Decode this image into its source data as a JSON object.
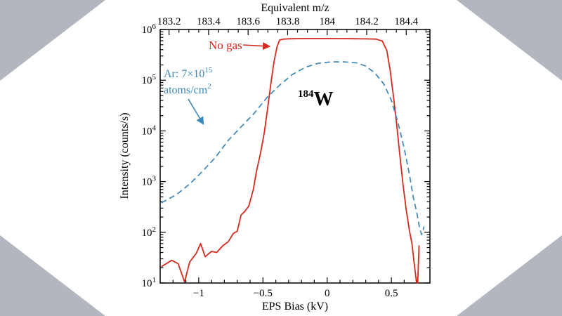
{
  "background": {
    "outer": "#b2b6be",
    "panel": "#ffffff"
  },
  "chart_data": {
    "type": "line",
    "title": "",
    "x_axis_bottom": {
      "label": "EPS Bias (kV)",
      "range": [
        -1.3,
        0.8
      ],
      "major_ticks": [
        -1,
        -0.5,
        0,
        0.5
      ],
      "tick_labels": [
        "−1",
        "−0.5",
        "0",
        "0.5"
      ],
      "minor_step": 0.1
    },
    "x_axis_top": {
      "label": "Equivalent m/z",
      "range": [
        183.155,
        184.52
      ],
      "major_ticks": [
        183.2,
        183.4,
        183.6,
        183.8,
        184.0,
        184.2,
        184.4
      ],
      "tick_labels": [
        "183.2",
        "183.4",
        "183.6",
        "183.8",
        "184",
        "184.2",
        "184.4"
      ],
      "minor_step": 0.05
    },
    "y_axis": {
      "label": "Intensity (counts/s)",
      "scale": "log",
      "range": [
        10,
        1000000
      ],
      "tick_exponents": [
        1,
        2,
        3,
        4,
        5,
        6
      ]
    },
    "series": [
      {
        "name": "No gas",
        "color": "#d62a1e",
        "line_style": "solid",
        "points": [
          [
            -1.29,
            21
          ],
          [
            -1.21,
            28
          ],
          [
            -1.16,
            24
          ],
          [
            -1.11,
            10.5
          ],
          [
            -1.07,
            26
          ],
          [
            -1.02,
            38
          ],
          [
            -0.985,
            60
          ],
          [
            -0.95,
            33
          ],
          [
            -0.9,
            42
          ],
          [
            -0.86,
            40
          ],
          [
            -0.81,
            55
          ],
          [
            -0.77,
            65
          ],
          [
            -0.73,
            95
          ],
          [
            -0.7,
            105
          ],
          [
            -0.67,
            220
          ],
          [
            -0.64,
            260
          ],
          [
            -0.61,
            330
          ],
          [
            -0.575,
            700
          ],
          [
            -0.55,
            1600
          ],
          [
            -0.52,
            3500
          ],
          [
            -0.49,
            9000
          ],
          [
            -0.465,
            26000
          ],
          [
            -0.44,
            80000
          ],
          [
            -0.415,
            220000
          ],
          [
            -0.39,
            460000
          ],
          [
            -0.37,
            620000
          ],
          [
            -0.34,
            645000
          ],
          [
            -0.3,
            655000
          ],
          [
            -0.22,
            660000
          ],
          [
            -0.12,
            662000
          ],
          [
            0,
            662000
          ],
          [
            0.12,
            660000
          ],
          [
            0.22,
            657000
          ],
          [
            0.31,
            652000
          ],
          [
            0.38,
            645000
          ],
          [
            0.43,
            590000
          ],
          [
            0.465,
            380000
          ],
          [
            0.49,
            160000
          ],
          [
            0.515,
            50000
          ],
          [
            0.54,
            14000
          ],
          [
            0.565,
            3500
          ],
          [
            0.59,
            900
          ],
          [
            0.615,
            280
          ],
          [
            0.64,
            110
          ],
          [
            0.66,
            60
          ],
          [
            0.675,
            28
          ],
          [
            0.695,
            10.5
          ],
          [
            0.705,
            10
          ],
          [
            0.715,
            55
          ]
        ]
      },
      {
        "name": "Ar: 7×10¹⁵ atoms/cm²",
        "color": "#3d86b8",
        "line_style": "dashed",
        "points": [
          [
            -1.29,
            380
          ],
          [
            -1.17,
            560
          ],
          [
            -1.07,
            900
          ],
          [
            -0.97,
            1600
          ],
          [
            -0.87,
            3000
          ],
          [
            -0.77,
            6500
          ],
          [
            -0.67,
            12000
          ],
          [
            -0.57,
            22000
          ],
          [
            -0.47,
            45000
          ],
          [
            -0.37,
            80000
          ],
          [
            -0.27,
            130000
          ],
          [
            -0.17,
            180000
          ],
          [
            -0.07,
            215000
          ],
          [
            0.03,
            230000
          ],
          [
            0.13,
            230000
          ],
          [
            0.23,
            220000
          ],
          [
            0.3,
            190000
          ],
          [
            0.37,
            140000
          ],
          [
            0.44,
            85000
          ],
          [
            0.5,
            40000
          ],
          [
            0.55,
            15000
          ],
          [
            0.6,
            4500
          ],
          [
            0.64,
            1400
          ],
          [
            0.67,
            500
          ],
          [
            0.7,
            230
          ],
          [
            0.72,
            120
          ],
          [
            0.735,
            90
          ],
          [
            0.755,
            130
          ]
        ]
      }
    ],
    "annotations": {
      "no_gas": {
        "text": "No gas"
      },
      "ar": {
        "line1": "Ar: 7×10",
        "line1_sup": "15",
        "line2": "atoms/cm",
        "line2_sup": "2"
      },
      "isotope": {
        "sup": "184",
        "symbol": "W"
      }
    }
  }
}
